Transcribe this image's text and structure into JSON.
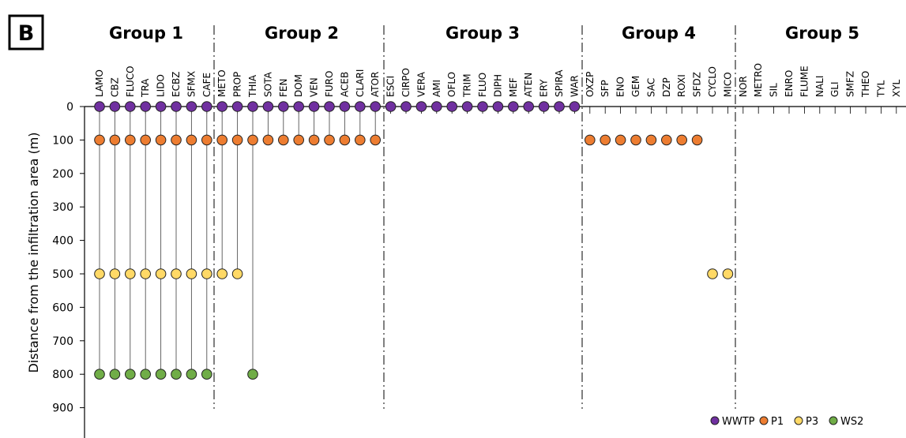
{
  "panel_label": "B",
  "chart_data": {
    "type": "scatter",
    "ylabel": "Distance from the infiltration area (m)",
    "yticks": [
      0,
      100,
      200,
      300,
      400,
      500,
      600,
      700,
      800,
      900
    ],
    "ylim": [
      0,
      950
    ],
    "y_inverted": true,
    "grid": false,
    "legend_position": "bottom-right",
    "groups": [
      {
        "name": "Group 1",
        "compounds": [
          "LAMO",
          "CBZ",
          "FLUCO",
          "TRA",
          "LIDO",
          "ECBZ",
          "SFMX",
          "CAFE"
        ]
      },
      {
        "name": "Group 2",
        "compounds": [
          "METO",
          "PROP",
          "THIA",
          "SOTA",
          "FEN",
          "DOM",
          "VEN",
          "FURO",
          "ACEB",
          "CLARI",
          "ATOR"
        ]
      },
      {
        "name": "Group 3",
        "compounds": [
          "ESCI",
          "CIRPO",
          "VERA",
          "AMI",
          "OFLO",
          "TRIM",
          "FLUO",
          "DIPH",
          "MEF",
          "ATEN",
          "ERY",
          "SPIRA",
          "WAR"
        ]
      },
      {
        "name": "Group 4",
        "compounds": [
          "OXZP",
          "SFP",
          "ENO",
          "GEM",
          "SAC",
          "DZP",
          "ROXI",
          "SFDZ",
          "CYCLO",
          "MICO"
        ]
      },
      {
        "name": "Group 5",
        "compounds": [
          "NOR",
          "METRO",
          "SIL",
          "ENRO",
          "FLUME",
          "NALI",
          "GLI",
          "SMFZ",
          "THEO",
          "TYL",
          "XYL"
        ]
      }
    ],
    "series": [
      {
        "name": "WWTP",
        "color": "#7030a0",
        "y": 0,
        "compounds": [
          "LAMO",
          "CBZ",
          "FLUCO",
          "TRA",
          "LIDO",
          "ECBZ",
          "SFMX",
          "CAFE",
          "METO",
          "PROP",
          "THIA",
          "SOTA",
          "FEN",
          "DOM",
          "VEN",
          "FURO",
          "ACEB",
          "CLARI",
          "ATOR",
          "ESCI",
          "CIRPO",
          "VERA",
          "AMI",
          "OFLO",
          "TRIM",
          "FLUO",
          "DIPH",
          "MEF",
          "ATEN",
          "ERY",
          "SPIRA",
          "WAR"
        ]
      },
      {
        "name": "P1",
        "color": "#ed7d31",
        "y": 100,
        "compounds": [
          "LAMO",
          "CBZ",
          "FLUCO",
          "TRA",
          "LIDO",
          "ECBZ",
          "SFMX",
          "CAFE",
          "METO",
          "PROP",
          "THIA",
          "SOTA",
          "FEN",
          "DOM",
          "VEN",
          "FURO",
          "ACEB",
          "CLARI",
          "ATOR",
          "OXZP",
          "SFP",
          "ENO",
          "GEM",
          "SAC",
          "DZP",
          "ROXI",
          "SFDZ"
        ]
      },
      {
        "name": "P3",
        "color": "#ffd966",
        "y": 500,
        "compounds": [
          "LAMO",
          "CBZ",
          "FLUCO",
          "TRA",
          "LIDO",
          "ECBZ",
          "SFMX",
          "CAFE",
          "METO",
          "PROP",
          "CYCLO",
          "MICO"
        ]
      },
      {
        "name": "WS2",
        "color": "#70ad47",
        "y": 800,
        "compounds": [
          "LAMO",
          "CBZ",
          "FLUCO",
          "TRA",
          "LIDO",
          "ECBZ",
          "SFMX",
          "CAFE",
          "THIA"
        ]
      }
    ]
  }
}
